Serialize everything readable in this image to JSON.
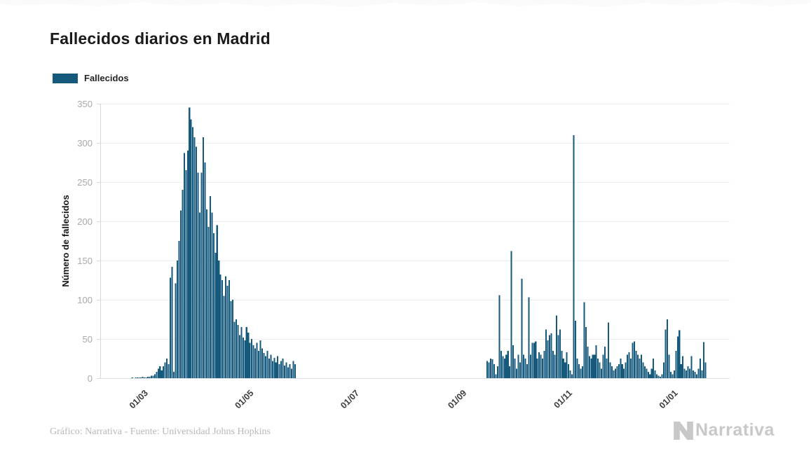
{
  "header": {
    "title": "Fallecidos diarios en Madrid"
  },
  "legend": {
    "items": [
      {
        "label": "Fallecidos",
        "color": "#15597c"
      }
    ]
  },
  "footer": {
    "credit": "Gráfico: Narrativa - Fuente: Universidad Johns Hopkins",
    "logo_text": "Narrativa"
  },
  "chart_data": {
    "type": "bar",
    "title": "Fallecidos diarios en Madrid",
    "series_name": "Fallecidos",
    "xlabel": "",
    "ylabel": "Número de fallecidos",
    "ylim": [
      0,
      350
    ],
    "y_ticks": [
      0,
      50,
      100,
      150,
      200,
      250,
      300,
      350
    ],
    "x_tick_labels": [
      "01/03",
      "01/05",
      "01/07",
      "01/09",
      "01/11",
      "01/01"
    ],
    "x_tick_day_indices": [
      25,
      86,
      147,
      209,
      270,
      331
    ],
    "start_date": "2020-02-05",
    "bar_color": "#15597c",
    "grid": true,
    "legend_position": "top-left",
    "notable_points": {
      "first_wave_peak": 345,
      "second_wave_peak": 310,
      "second_wave_spikes": [
        106,
        162,
        127,
        103,
        97,
        71,
        75
      ]
    },
    "daily_values": [
      0,
      0,
      0,
      0,
      0,
      0,
      0,
      0,
      0,
      0,
      0,
      0,
      0,
      0,
      0,
      0,
      0,
      0,
      1,
      0,
      1,
      1,
      1,
      1,
      2,
      1,
      1,
      2,
      2,
      3,
      3,
      5,
      8,
      12,
      15,
      10,
      15,
      20,
      25,
      18,
      128,
      142,
      8,
      121,
      150,
      175,
      214,
      240,
      287,
      265,
      290,
      345,
      330,
      320,
      307,
      295,
      262,
      211,
      262,
      307,
      275,
      215,
      193,
      232,
      211,
      185,
      160,
      195,
      150,
      132,
      125,
      105,
      130,
      118,
      125,
      98,
      100,
      72,
      75,
      68,
      55,
      65,
      52,
      48,
      65,
      58,
      45,
      50,
      42,
      38,
      45,
      35,
      48,
      38,
      32,
      28,
      35,
      25,
      30,
      22,
      26,
      20,
      28,
      18,
      22,
      25,
      16,
      20,
      14,
      18,
      12,
      22,
      18,
      0,
      0,
      0,
      0,
      0,
      0,
      0,
      0,
      0,
      0,
      0,
      0,
      0,
      0,
      0,
      0,
      0,
      0,
      0,
      0,
      0,
      0,
      0,
      0,
      0,
      0,
      0,
      0,
      0,
      0,
      0,
      0,
      0,
      0,
      0,
      0,
      0,
      0,
      0,
      0,
      0,
      0,
      0,
      0,
      0,
      0,
      0,
      0,
      0,
      0,
      0,
      0,
      0,
      0,
      0,
      0,
      0,
      0,
      0,
      0,
      0,
      0,
      0,
      0,
      0,
      0,
      0,
      0,
      0,
      0,
      0,
      0,
      0,
      0,
      0,
      0,
      0,
      0,
      0,
      0,
      0,
      0,
      0,
      0,
      0,
      0,
      0,
      0,
      0,
      0,
      0,
      0,
      0,
      0,
      0,
      0,
      0,
      0,
      0,
      0,
      0,
      0,
      0,
      0,
      0,
      0,
      0,
      0,
      0,
      0,
      22,
      20,
      25,
      24,
      18,
      5,
      15,
      106,
      35,
      28,
      25,
      30,
      35,
      15,
      162,
      42,
      25,
      12,
      30,
      20,
      127,
      30,
      25,
      18,
      103,
      30,
      45,
      45,
      47,
      25,
      33,
      30,
      25,
      35,
      62,
      48,
      55,
      57,
      35,
      30,
      80,
      55,
      62,
      35,
      25,
      20,
      33,
      18,
      10,
      5,
      310,
      73,
      25,
      18,
      12,
      15,
      97,
      65,
      40,
      28,
      25,
      30,
      30,
      42,
      25,
      20,
      12,
      30,
      40,
      25,
      71,
      20,
      15,
      10,
      12,
      15,
      18,
      25,
      18,
      12,
      20,
      30,
      33,
      25,
      45,
      47,
      35,
      30,
      25,
      30,
      20,
      15,
      12,
      8,
      5,
      12,
      25,
      10,
      5,
      3,
      2,
      5,
      20,
      62,
      75,
      30,
      8,
      5,
      10,
      35,
      53,
      61,
      18,
      28,
      12,
      10,
      15,
      12,
      28,
      10,
      8,
      5,
      12,
      25,
      10,
      46,
      20
    ]
  }
}
